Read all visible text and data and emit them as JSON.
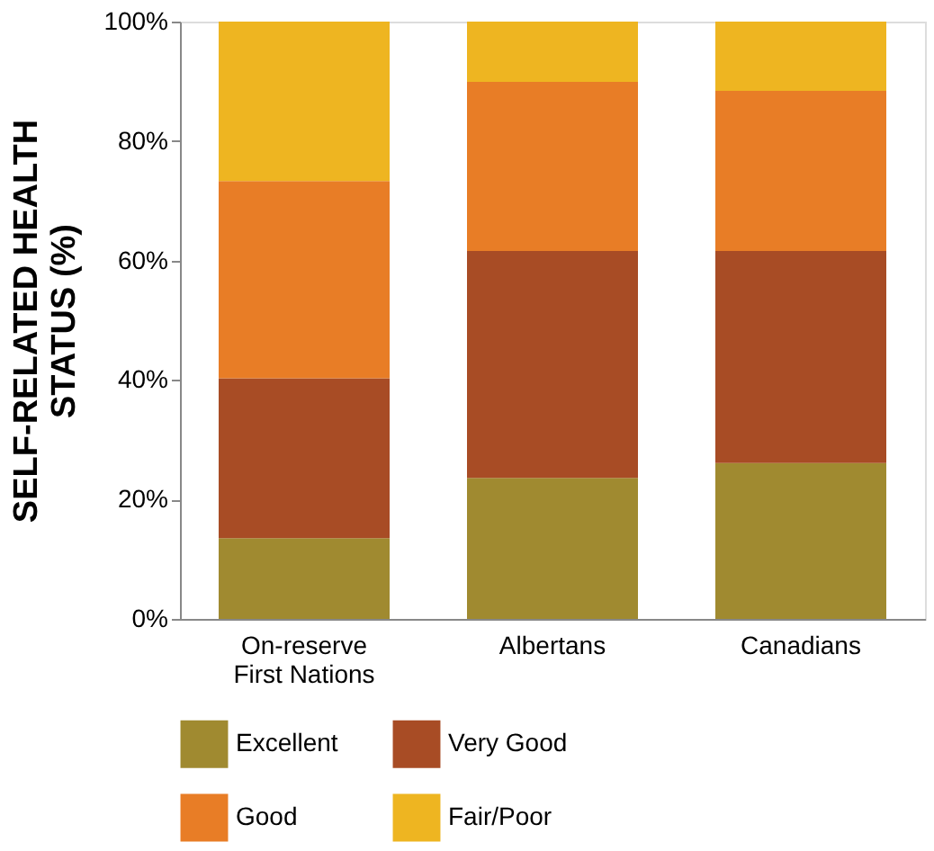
{
  "chart_data": {
    "type": "bar",
    "stacked": true,
    "ylabel": "SELF-RELATED HEALTH\nSTATUS (%)",
    "categories": [
      "On-reserve\nFirst Nations",
      "Albertans",
      "Canadians"
    ],
    "series": [
      {
        "name": "Excellent",
        "color": "#a08a30",
        "values": [
          13.5,
          23.6,
          26.1
        ]
      },
      {
        "name": "Very Good",
        "color": "#a84c25",
        "values": [
          26.8,
          38,
          35.5
        ]
      },
      {
        "name": "Good",
        "color": "#e87d26",
        "values": [
          33,
          28.3,
          26.8
        ]
      },
      {
        "name": "Fair/Poor",
        "color": "#eeb521",
        "values": [
          26.7,
          10.1,
          11.6
        ]
      }
    ],
    "ylim": [
      0,
      100
    ],
    "yticks": [
      {
        "value": 0,
        "label": "0%"
      },
      {
        "value": 20,
        "label": "20%"
      },
      {
        "value": 40,
        "label": "40%"
      },
      {
        "value": 60,
        "label": "60%"
      },
      {
        "value": 80,
        "label": "80%"
      },
      {
        "value": 100,
        "label": "100%"
      }
    ],
    "grid": false,
    "legend": "bottom"
  }
}
